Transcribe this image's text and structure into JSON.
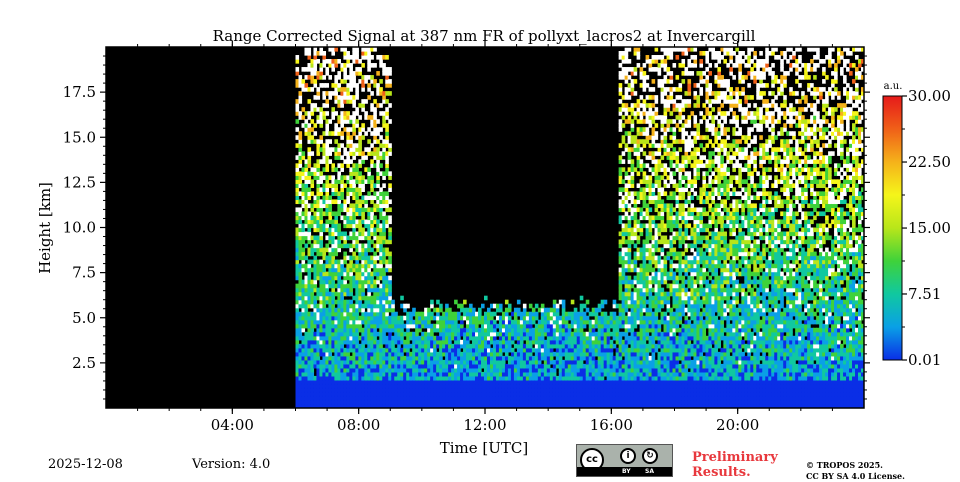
{
  "chart_data": {
    "type": "heatmap",
    "title": "Range Corrected Signal at 387 nm FR of pollyxt_lacros2 at Invercargill",
    "xlabel": "Time [UTC]",
    "ylabel": "Height [km]",
    "xlim": [
      0,
      24
    ],
    "ylim": [
      0,
      20
    ],
    "x_ticks": [
      {
        "value": 4,
        "label": "04:00"
      },
      {
        "value": 8,
        "label": "08:00"
      },
      {
        "value": 12,
        "label": "12:00"
      },
      {
        "value": 16,
        "label": "16:00"
      },
      {
        "value": 20,
        "label": "20:00"
      }
    ],
    "y_ticks": [
      {
        "value": 2.5,
        "label": "2.5"
      },
      {
        "value": 5.0,
        "label": "5.0"
      },
      {
        "value": 7.5,
        "label": "7.5"
      },
      {
        "value": 10.0,
        "label": "10.0"
      },
      {
        "value": 12.5,
        "label": "12.5"
      },
      {
        "value": 15.0,
        "label": "15.0"
      },
      {
        "value": 17.5,
        "label": "17.5"
      }
    ],
    "colorbar": {
      "unit": "a.u.",
      "range": [
        0.01,
        30.0
      ],
      "colors": [
        "#0a2ee6",
        "#0aa0e6",
        "#10c8a0",
        "#3fd23a",
        "#b8e61a",
        "#f5f51a",
        "#f5b21a",
        "#f06018",
        "#e61a1a"
      ],
      "ticks": [
        {
          "value": 0.01,
          "label": "0.01"
        },
        {
          "value": 7.51,
          "label": "7.51"
        },
        {
          "value": 15.0,
          "label": "15.00"
        },
        {
          "value": 22.5,
          "label": "22.50"
        },
        {
          "value": 30.0,
          "label": "30.00"
        }
      ]
    },
    "no_data_periods_hours": [
      [
        0,
        6
      ]
    ],
    "cloud_periods_hours": [
      [
        9.0,
        16.2
      ]
    ],
    "cloud_base_km": 5.5,
    "boundary_layer_top_km": 1.5
  },
  "footer": {
    "date": "2025-12-08",
    "version": "Version: 4.0",
    "preliminary_line1": "Preliminary",
    "preliminary_line2": "Results.",
    "copyright_line1": "© TROPOS 2025.",
    "copyright_line2": "CC BY SA 4.0 License.",
    "license_badge": {
      "cc": "cc",
      "by": "BY",
      "sa": "SA"
    }
  }
}
